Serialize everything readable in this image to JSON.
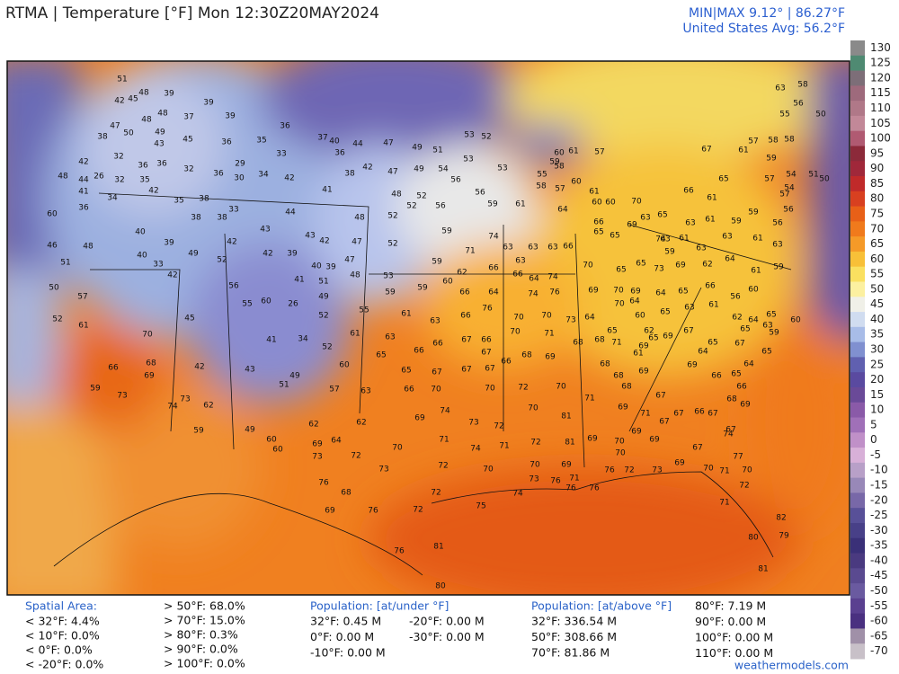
{
  "header": {
    "title": "RTMA | Temperature [°F]  Mon 12:30Z20MAY2024",
    "minmax": "MIN|MAX 9.12° | 86.27°F",
    "average": "United States Avg: 56.2°F"
  },
  "stations": [
    51,
    42,
    45,
    48,
    39,
    47,
    48,
    48,
    37,
    39,
    39,
    50,
    38,
    49,
    43,
    45,
    32,
    36,
    36,
    32,
    42,
    48,
    26,
    44,
    41,
    32,
    35,
    36,
    29,
    30,
    34,
    42,
    33,
    35,
    36,
    36,
    37,
    40,
    44,
    47,
    49,
    51,
    53,
    52,
    36,
    42,
    38,
    41,
    47,
    49,
    54,
    53,
    53,
    48,
    52,
    56,
    56,
    56,
    59,
    60,
    36,
    34,
    42,
    35,
    38,
    33,
    38,
    38,
    40,
    39,
    40,
    33,
    42,
    49,
    52,
    56,
    55,
    60,
    26,
    52,
    41,
    51,
    49,
    39,
    42,
    42,
    43,
    44,
    43,
    42,
    40,
    39,
    47,
    48,
    52,
    52,
    48,
    47,
    53,
    46,
    51,
    48,
    50,
    57,
    52,
    61,
    66,
    59,
    73,
    68,
    69,
    70,
    45,
    42,
    43,
    41,
    34,
    52,
    49,
    51,
    73,
    74,
    62,
    59,
    49,
    60,
    60,
    62,
    62,
    69,
    64,
    73,
    72,
    73,
    60,
    57,
    63,
    61,
    55,
    65,
    52,
    59,
    59,
    62,
    60,
    59,
    59,
    61,
    63,
    66,
    63,
    66,
    66,
    65,
    67,
    67,
    67,
    67,
    66,
    67,
    66,
    68,
    69,
    70,
    70,
    71,
    70,
    73,
    76,
    66,
    64,
    66,
    66,
    64,
    74,
    76,
    74,
    74,
    63,
    63,
    63,
    66,
    71,
    63,
    66,
    70,
    70,
    72,
    70,
    70,
    69,
    74,
    73,
    72,
    71,
    74,
    71,
    72,
    70,
    72,
    70,
    70,
    69,
    71,
    73,
    76,
    76,
    76,
    76,
    72,
    73,
    72,
    72,
    75,
    74,
    76,
    68,
    69,
    76,
    76,
    81,
    80,
    81,
    69,
    70,
    70,
    69,
    69,
    67,
    67,
    69,
    70,
    71,
    70,
    72,
    77,
    74,
    71,
    80,
    82,
    79,
    81,
    81,
    71,
    69,
    71,
    67,
    66,
    67,
    67,
    68,
    68,
    71,
    69,
    65,
    69,
    67,
    64,
    66,
    65,
    66,
    68,
    69,
    69,
    65,
    67,
    65,
    64,
    65,
    63,
    64,
    65,
    60,
    59,
    62,
    61,
    63,
    65,
    60,
    62,
    64,
    64,
    65,
    66,
    56,
    60,
    61,
    59,
    61,
    56,
    59,
    59,
    61,
    63,
    61,
    63,
    63,
    62,
    64,
    59,
    65,
    73,
    69,
    65,
    70,
    69,
    70,
    69,
    70,
    64,
    65,
    68,
    68,
    69,
    68,
    67,
    61,
    63,
    65,
    66,
    61,
    65,
    67,
    61,
    58,
    58,
    57,
    59,
    57,
    54,
    54,
    51,
    50,
    63,
    58,
    56,
    55,
    50,
    57,
    56,
    63,
    55,
    58,
    61,
    58,
    60,
    61,
    57,
    59,
    60,
    61,
    60,
    60,
    57,
    64,
    65,
    65,
    70,
    63,
    66,
    69,
    74
  ],
  "colorbar": {
    "ticks": [
      130,
      125,
      120,
      115,
      110,
      105,
      100,
      95,
      90,
      85,
      80,
      75,
      70,
      65,
      60,
      55,
      50,
      45,
      40,
      35,
      30,
      25,
      20,
      15,
      10,
      5,
      0,
      -5,
      -10,
      -15,
      -20,
      -25,
      -30,
      -35,
      -40,
      -45,
      -50,
      -55,
      -60,
      -65,
      -70
    ],
    "colors": [
      "#8a8a8a",
      "#4f8a72",
      "#7d6e78",
      "#9e6a7c",
      "#b07888",
      "#c28898",
      "#b05a72",
      "#8c2a3a",
      "#a0283a",
      "#c02a2a",
      "#d84020",
      "#e86018",
      "#f07a1c",
      "#f59a28",
      "#f8c038",
      "#fae060",
      "#fcf0a0",
      "#f0f0e8",
      "#d0dcf0",
      "#a8bce8",
      "#8090d0",
      "#6060b0",
      "#5a4aa0",
      "#6a4a98",
      "#8a5aa8",
      "#a070b8",
      "#c090c8",
      "#d8b0d8",
      "#b8a0c8",
      "#9888b8",
      "#7868a8",
      "#585098",
      "#484088",
      "#3a3078",
      "#4a3a80",
      "#5a4a90",
      "#6a5aa0",
      "#5a4090",
      "#4a3080",
      "#a090a8",
      "#c8c0c8"
    ]
  },
  "footer": {
    "groups": [
      {
        "heading": "Spatial Area:",
        "items": [
          "< 32°F: 4.4%",
          "< 10°F: 0.0%",
          "< 0°F: 0.0%",
          "< -20°F: 0.0%"
        ]
      },
      {
        "items": [
          "> 50°F: 68.0%",
          "> 70°F: 15.0%",
          "> 80°F: 0.3%",
          "> 90°F: 0.0%",
          "> 100°F: 0.0%"
        ]
      },
      {
        "heading": "Population: [at/under °F]",
        "items": [
          "32°F: 0.45 M",
          "0°F: 0.00 M",
          "-10°F: 0.00 M"
        ]
      },
      {
        "items": [
          "-20°F: 0.00 M",
          "-30°F: 0.00 M"
        ]
      },
      {
        "heading": "Population: [at/above °F]",
        "items": [
          "32°F: 336.54 M",
          "50°F: 308.66 M",
          "70°F: 81.86 M"
        ]
      },
      {
        "items": [
          "80°F: 7.19 M",
          "90°F: 0.00 M",
          "100°F: 0.00 M",
          "110°F: 0.00 M"
        ]
      }
    ],
    "credit": "weathermodels.com"
  }
}
